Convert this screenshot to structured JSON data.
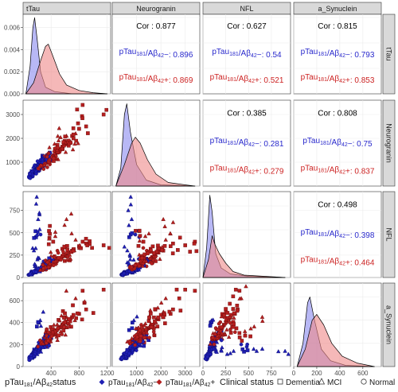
{
  "chart_data": {
    "type": "pairs-matrix",
    "variables": [
      "tTau",
      "Neurogranin",
      "NFL",
      "a_Synuclein"
    ],
    "axes": {
      "tTau": {
        "lim": [
          0,
          1250
        ],
        "ticks": [
          400,
          800,
          1200
        ],
        "tick_labels": [
          "400",
          "800",
          "1200"
        ]
      },
      "Neurogranin": {
        "lim": [
          0,
          3600
        ],
        "ticks": [
          1000,
          2000,
          3000
        ],
        "tick_labels": [
          "1000",
          "2000",
          "3000"
        ]
      },
      "NFL": {
        "lim": [
          0,
          960
        ],
        "ticks": [
          0,
          250,
          500,
          750
        ],
        "tick_labels": [
          "0",
          "250",
          "500",
          "750"
        ]
      },
      "a_Synuclein": {
        "lim": [
          0,
          760
        ],
        "ticks": [
          0,
          200,
          400,
          600
        ],
        "tick_labels": [
          "0",
          "200",
          "400",
          "600"
        ]
      }
    },
    "density_axis": {
      "lim": [
        0,
        0.0072
      ],
      "ticks": [
        0.0,
        0.002,
        0.004,
        0.006
      ],
      "tick_labels": [
        "0.000",
        "0.002",
        "0.004",
        "0.006"
      ]
    },
    "groups": [
      {
        "name_base": "pTau",
        "name_sub1": "181",
        "name_mid": "/Aβ",
        "name_sub2": "42",
        "name_sign": "−",
        "color": "#2828cc",
        "fill": "#8888ee"
      },
      {
        "name_base": "pTau",
        "name_sub1": "181",
        "name_mid": "/Aβ",
        "name_sub2": "42",
        "name_sign": "+",
        "color": "#cc2222",
        "fill": "#ee8888"
      }
    ],
    "densities": [
      {
        "var": "tTau",
        "groups": [
          {
            "peak": 0.0069,
            "points": [
              [
                40,
                0.0
              ],
              [
                100,
                0.0025
              ],
              [
                140,
                0.006
              ],
              [
                165,
                0.0069
              ],
              [
                200,
                0.005
              ],
              [
                250,
                0.002
              ],
              [
                320,
                0.0006
              ],
              [
                450,
                0.0002
              ],
              [
                700,
                0.0
              ],
              [
                1200,
                0.0
              ]
            ]
          },
          {
            "peak": 0.0045,
            "points": [
              [
                40,
                0.0
              ],
              [
                150,
                0.001
              ],
              [
                250,
                0.003
              ],
              [
                320,
                0.0043
              ],
              [
                360,
                0.0045
              ],
              [
                420,
                0.0035
              ],
              [
                520,
                0.0018
              ],
              [
                620,
                0.0008
              ],
              [
                800,
                0.0003
              ],
              [
                1000,
                0.0001
              ],
              [
                1200,
                0.0
              ]
            ]
          }
        ]
      },
      {
        "var": "Neurogranin",
        "groups": [
          {
            "points": [
              [
                150,
                0.0
              ],
              [
                350,
                0.0015
              ],
              [
                500,
                0.006
              ],
              [
                600,
                0.0069
              ],
              [
                750,
                0.0045
              ],
              [
                1000,
                0.0018
              ],
              [
                1400,
                0.0005
              ],
              [
                2000,
                0.0001
              ],
              [
                3400,
                0.0
              ]
            ]
          },
          {
            "points": [
              [
                150,
                0.0
              ],
              [
                500,
                0.0018
              ],
              [
                800,
                0.0036
              ],
              [
                950,
                0.0041
              ],
              [
                1150,
                0.0036
              ],
              [
                1450,
                0.0022
              ],
              [
                1800,
                0.001
              ],
              [
                2300,
                0.0003
              ],
              [
                3000,
                0.0001
              ],
              [
                3400,
                0.0
              ]
            ]
          }
        ]
      },
      {
        "var": "NFL",
        "groups": [
          {
            "points": [
              [
                0,
                0.0
              ],
              [
                40,
                0.0025
              ],
              [
                75,
                0.0069
              ],
              [
                100,
                0.0055
              ],
              [
                140,
                0.002
              ],
              [
                200,
                0.0008
              ],
              [
                300,
                0.0003
              ],
              [
                500,
                0.0001
              ],
              [
                900,
                0.0
              ]
            ]
          },
          {
            "points": [
              [
                0,
                0.0
              ],
              [
                60,
                0.0015
              ],
              [
                100,
                0.0035
              ],
              [
                130,
                0.0028
              ],
              [
                180,
                0.002
              ],
              [
                250,
                0.0012
              ],
              [
                330,
                0.0005
              ],
              [
                450,
                0.0002
              ],
              [
                900,
                0.0
              ]
            ]
          }
        ]
      },
      {
        "var": "a_Synuclein",
        "groups": [
          {
            "points": [
              [
                30,
                0.0
              ],
              [
                80,
                0.002
              ],
              [
                120,
                0.0055
              ],
              [
                140,
                0.006
              ],
              [
                180,
                0.004
              ],
              [
                240,
                0.0015
              ],
              [
                320,
                0.0005
              ],
              [
                450,
                0.0001
              ],
              [
                700,
                0.0
              ]
            ]
          },
          {
            "points": [
              [
                30,
                0.0
              ],
              [
                100,
                0.0015
              ],
              [
                160,
                0.004
              ],
              [
                200,
                0.0045
              ],
              [
                260,
                0.0036
              ],
              [
                330,
                0.002
              ],
              [
                420,
                0.0009
              ],
              [
                550,
                0.0003
              ],
              [
                700,
                0.0
              ]
            ]
          }
        ]
      }
    ],
    "correlations": [
      {
        "row": 0,
        "col": 1,
        "cor": "Cor : 0.877",
        "neg": ": 0.896",
        "pos": ": 0.869"
      },
      {
        "row": 0,
        "col": 2,
        "cor": "Cor : 0.627",
        "neg": ": 0.54",
        "pos": ": 0.521"
      },
      {
        "row": 0,
        "col": 3,
        "cor": "Cor : 0.815",
        "neg": ": 0.793",
        "pos": ": 0.853"
      },
      {
        "row": 1,
        "col": 2,
        "cor": "Cor : 0.385",
        "neg": ": 0.281",
        "pos": ": 0.279"
      },
      {
        "row": 1,
        "col": 3,
        "cor": "Cor : 0.808",
        "neg": ": 0.75",
        "pos": ": 0.837"
      },
      {
        "row": 2,
        "col": 3,
        "cor": "Cor : 0.498",
        "neg": ": 0.398",
        "pos": ": 0.464"
      }
    ],
    "scatter_points": {
      "description_note": "",
      "samples": [
        [
          120,
          520,
          40,
          90,
          0,
          0
        ],
        [
          150,
          600,
          55,
          110,
          0,
          2
        ],
        [
          180,
          700,
          60,
          130,
          0,
          1
        ],
        [
          200,
          760,
          70,
          140,
          0,
          2
        ],
        [
          220,
          820,
          80,
          150,
          0,
          1
        ],
        [
          250,
          900,
          85,
          170,
          0,
          2
        ],
        [
          130,
          480,
          45,
          100,
          0,
          2
        ],
        [
          170,
          650,
          65,
          120,
          0,
          1
        ],
        [
          100,
          420,
          35,
          80,
          0,
          2
        ],
        [
          210,
          780,
          90,
          160,
          0,
          1
        ],
        [
          240,
          880,
          75,
          175,
          0,
          2
        ],
        [
          160,
          600,
          60,
          115,
          0,
          1
        ],
        [
          140,
          540,
          50,
          105,
          0,
          2
        ],
        [
          190,
          720,
          70,
          135,
          0,
          2
        ],
        [
          230,
          850,
          95,
          155,
          0,
          1
        ],
        [
          260,
          930,
          100,
          180,
          0,
          1
        ],
        [
          110,
          450,
          40,
          85,
          0,
          2
        ],
        [
          280,
          1000,
          110,
          200,
          0,
          2
        ],
        [
          300,
          1050,
          120,
          210,
          0,
          1
        ],
        [
          320,
          1150,
          130,
          230,
          0,
          0
        ],
        [
          90,
          380,
          30,
          70,
          0,
          2
        ],
        [
          175,
          680,
          140,
          140,
          0,
          1
        ],
        [
          205,
          740,
          200,
          150,
          0,
          1
        ],
        [
          155,
          620,
          300,
          120,
          0,
          1
        ],
        [
          185,
          700,
          450,
          135,
          0,
          0
        ],
        [
          215,
          800,
          650,
          160,
          0,
          1
        ],
        [
          195,
          760,
          900,
          140,
          0,
          1
        ],
        [
          250,
          950,
          480,
          180,
          0,
          2
        ],
        [
          340,
          1250,
          150,
          260,
          0,
          1
        ],
        [
          360,
          1300,
          180,
          270,
          0,
          2
        ],
        [
          380,
          1400,
          210,
          290,
          0,
          0
        ],
        [
          145,
          560,
          60,
          110,
          0,
          2
        ],
        [
          125,
          500,
          50,
          95,
          0,
          1
        ],
        [
          165,
          640,
          75,
          125,
          0,
          2
        ],
        [
          235,
          870,
          90,
          160,
          0,
          1
        ],
        [
          270,
          980,
          100,
          190,
          0,
          2
        ],
        [
          290,
          1020,
          115,
          205,
          0,
          1
        ],
        [
          310,
          1100,
          125,
          220,
          0,
          2
        ],
        [
          105,
          430,
          38,
          90,
          0,
          2
        ],
        [
          135,
          530,
          48,
          105,
          0,
          1
        ],
        [
          225,
          830,
          85,
          400,
          0,
          0
        ],
        [
          245,
          890,
          95,
          420,
          0,
          1
        ],
        [
          115,
          470,
          42,
          92,
          0,
          2
        ],
        [
          265,
          940,
          105,
          185,
          0,
          1
        ],
        [
          300,
          900,
          100,
          240,
          1,
          2
        ],
        [
          350,
          1100,
          140,
          260,
          1,
          1
        ],
        [
          400,
          1200,
          160,
          290,
          1,
          2
        ],
        [
          450,
          1350,
          180,
          320,
          1,
          1
        ],
        [
          500,
          1500,
          200,
          350,
          1,
          0
        ],
        [
          420,
          1250,
          170,
          300,
          1,
          2
        ],
        [
          380,
          1150,
          150,
          280,
          1,
          1
        ],
        [
          330,
          1000,
          130,
          250,
          1,
          2
        ],
        [
          480,
          1400,
          190,
          330,
          1,
          0
        ],
        [
          520,
          1550,
          210,
          360,
          1,
          1
        ],
        [
          560,
          1650,
          230,
          380,
          1,
          0
        ],
        [
          600,
          1800,
          250,
          400,
          1,
          1
        ],
        [
          650,
          1900,
          280,
          430,
          1,
          0
        ],
        [
          700,
          2100,
          300,
          450,
          1,
          0
        ],
        [
          360,
          1050,
          145,
          265,
          1,
          2
        ],
        [
          440,
          1300,
          175,
          310,
          1,
          1
        ],
        [
          470,
          1380,
          185,
          325,
          1,
          2
        ],
        [
          390,
          1180,
          155,
          285,
          1,
          2
        ],
        [
          410,
          1220,
          165,
          295,
          1,
          1
        ],
        [
          340,
          980,
          135,
          255,
          1,
          1
        ],
        [
          310,
          920,
          120,
          245,
          1,
          2
        ],
        [
          540,
          1600,
          220,
          370,
          1,
          1
        ],
        [
          580,
          1700,
          240,
          390,
          1,
          1
        ],
        [
          430,
          1280,
          400,
          305,
          1,
          0
        ],
        [
          460,
          1360,
          460,
          320,
          1,
          1
        ],
        [
          370,
          1120,
          520,
          275,
          1,
          0
        ],
        [
          800,
          2400,
          350,
          480,
          1,
          0
        ],
        [
          900,
          2500,
          380,
          520,
          1,
          0
        ],
        [
          1150,
          3000,
          360,
          700,
          1,
          0
        ],
        [
          850,
          3400,
          400,
          690,
          1,
          0
        ],
        [
          620,
          2100,
          650,
          450,
          1,
          1
        ],
        [
          750,
          2200,
          420,
          620,
          1,
          1
        ],
        [
          280,
          850,
          110,
          230,
          1,
          2
        ],
        [
          260,
          800,
          105,
          220,
          1,
          2
        ],
        [
          240,
          760,
          95,
          210,
          1,
          1
        ],
        [
          320,
          960,
          125,
          250,
          1,
          2
        ],
        [
          500,
          1450,
          195,
          340,
          1,
          2
        ],
        [
          530,
          1520,
          205,
          355,
          1,
          1
        ],
        [
          490,
          1420,
          300,
          338,
          1,
          2
        ],
        [
          560,
          1580,
          320,
          365,
          1,
          0
        ],
        [
          610,
          1750,
          260,
          410,
          1,
          0
        ],
        [
          680,
          1850,
          290,
          440,
          1,
          1
        ],
        [
          720,
          2000,
          310,
          470,
          1,
          0
        ],
        [
          400,
          1180,
          240,
          300,
          1,
          1
        ]
      ]
    },
    "legend": {
      "status_title_base": "pTau",
      "status_title_sub1": "181",
      "status_title_mid": "/Aβ",
      "status_title_sub2": "42",
      "status_title_end": "status",
      "status_items": [
        {
          "base": "pTau",
          "sub1": "181",
          "mid": "/Aβ",
          "sub2": "42",
          "sign": "−"
        },
        {
          "base": "pTau",
          "sub1": "181",
          "mid": "/Aβ",
          "sub2": "42",
          "sign": "+"
        }
      ],
      "clinical_title": "Clinical status",
      "clinical_items": [
        "Dementia",
        "MCI",
        "Normal"
      ]
    }
  }
}
